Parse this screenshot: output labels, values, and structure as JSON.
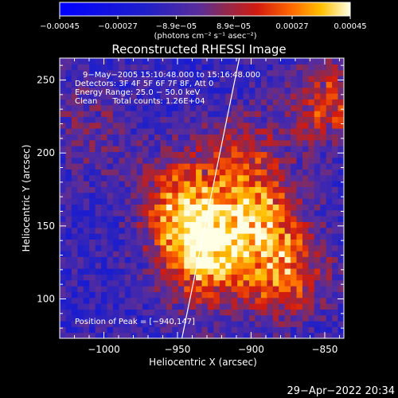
{
  "chart_data": {
    "type": "heatmap",
    "title": "Reconstructed RHESSI Image",
    "xlabel": "Heliocentric X (arcsec)",
    "ylabel": "Heliocentric Y (arcsec)",
    "xlim": [
      -1030,
      -837
    ],
    "ylim": [
      73,
      265
    ],
    "x_ticks": [
      -1000,
      -950,
      -900,
      -850
    ],
    "x_tick_labels": [
      "−1000",
      "−950",
      "−900",
      "−850"
    ],
    "y_ticks": [
      100,
      150,
      200,
      250
    ],
    "y_tick_labels": [
      "100",
      "150",
      "200",
      "250"
    ],
    "colorbar": {
      "min": -0.00045,
      "max": 0.00045,
      "ticks": [
        -0.00045,
        -0.00027,
        -8.9e-05,
        8.9e-05,
        0.00027,
        0.00045
      ],
      "tick_labels": [
        "−0.00045",
        "−0.00027",
        "−8.9e−05",
        "8.9e−05",
        "0.00027",
        "0.00045"
      ],
      "unit_label": "(photons cm⁻² s⁻¹ asec⁻²)"
    },
    "annotations": [
      "9−May−2005 15:10:48.000 to 15:16:48.000",
      "Detectors: 3F 4F 5F 6F 7F 8F, Att 0",
      "Energy Range: 25.0 − 50.0 keV",
      "Clean      Total counts: 1.26E+04"
    ],
    "peak_label": "Position of Peak = [−940,147]",
    "peak": {
      "x": -940,
      "y": 147
    },
    "limb_x_at_ylim": [
      -947,
      -908
    ],
    "sources": [
      {
        "x": -940,
        "y": 147,
        "amplitude": 0.00042
      },
      {
        "x": -897,
        "y": 155,
        "amplitude": 0.0004
      },
      {
        "x": -877,
        "y": 118,
        "amplitude": 0.00036
      },
      {
        "x": -927,
        "y": 120,
        "amplitude": 0.0003
      },
      {
        "x": -845,
        "y": 235,
        "amplitude": 0.0003
      },
      {
        "x": -905,
        "y": 197,
        "amplitude": 0.00024
      },
      {
        "x": -950,
        "y": 175,
        "amplitude": 0.00022
      },
      {
        "x": -1010,
        "y": 215,
        "amplitude": 0.00012
      }
    ],
    "grid": false
  },
  "footer": {
    "timestamp": "29−Apr−2022 20:34"
  }
}
